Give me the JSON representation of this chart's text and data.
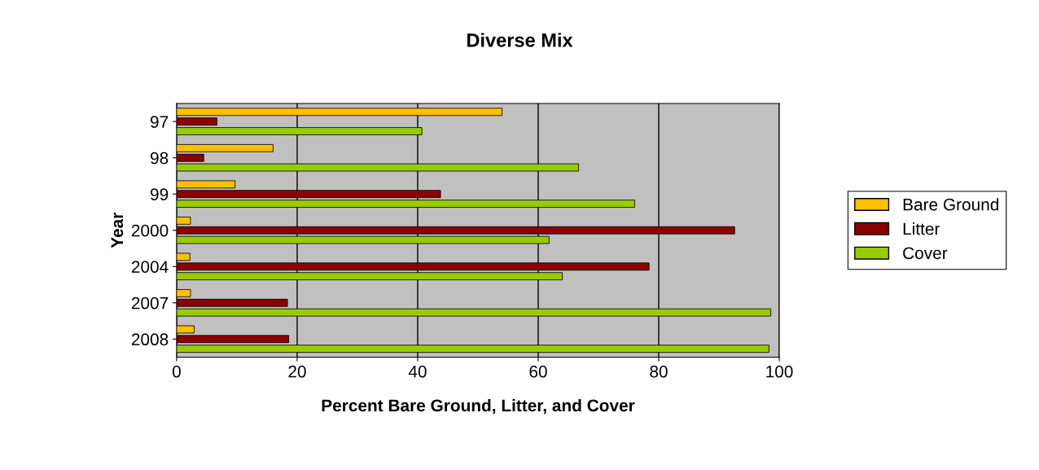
{
  "chart_data": {
    "type": "bar",
    "orientation": "horizontal",
    "title": "Diverse Mix",
    "xlabel": "Percent Bare Ground, Litter, and Cover",
    "ylabel": "Year",
    "categories": [
      "97",
      "98",
      "99",
      "2000",
      "2004",
      "2007",
      "2008"
    ],
    "series": [
      {
        "name": "Bare Ground",
        "color": "#ffc000",
        "values": [
          54,
          16,
          9.7,
          2.3,
          2.2,
          2.3,
          2.9
        ]
      },
      {
        "name": "Litter",
        "color": "#8b0000",
        "values": [
          6.7,
          4.5,
          43.8,
          92.6,
          78.4,
          18.4,
          18.6
        ]
      },
      {
        "name": "Cover",
        "color": "#99cc00",
        "values": [
          40.7,
          66.7,
          76,
          61.8,
          64,
          98.6,
          98.3
        ]
      }
    ],
    "xlim": [
      0,
      100
    ],
    "xticks": [
      0,
      20,
      40,
      60,
      80,
      100
    ],
    "grid": "x",
    "legend": "right"
  }
}
